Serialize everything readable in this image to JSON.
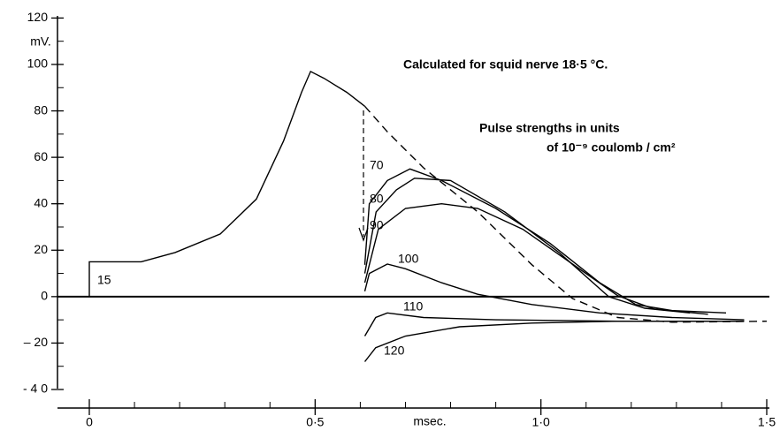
{
  "chart_data": {
    "type": "line",
    "title": "Calculated for squid nerve 18·5 °C.",
    "annotations": [
      "Pulse strengths in units",
      "of 10⁻⁹ coulomb / cm²"
    ],
    "x_label": "msec.",
    "y_label": "mV.",
    "xlim": [
      0,
      1.5
    ],
    "ylim": [
      -40,
      120
    ],
    "xticks": [
      {
        "value": 0,
        "label": "0"
      },
      {
        "value": 0.5,
        "label": "0·5"
      },
      {
        "value": 1.0,
        "label": "1·0"
      },
      {
        "value": 1.5,
        "label": "1·5"
      }
    ],
    "xminorticks": [
      0.1,
      0.2,
      0.3,
      0.4,
      0.6,
      0.7,
      0.8,
      0.9,
      1.1,
      1.2,
      1.3,
      1.4
    ],
    "yticks": [
      120,
      100,
      80,
      60,
      40,
      20,
      0,
      {
        "value": -20,
        "label": "– 20"
      },
      {
        "value": -40,
        "label": "- 4 0"
      }
    ],
    "yminorticks": [
      110,
      90,
      70,
      50,
      30,
      10,
      -10,
      -30
    ],
    "series": [
      {
        "name": "15",
        "color": "#000",
        "dash": false,
        "x": [
          0,
          0,
          0.115,
          0.19,
          0.29,
          0.37,
          0.43,
          0.47,
          0.49,
          0.52,
          0.57,
          0.61
        ],
        "values": [
          0,
          15,
          15,
          19,
          27,
          42,
          67,
          88,
          97,
          94,
          88,
          82
        ]
      },
      {
        "color": "#000",
        "dash": true,
        "x": [
          0.61,
          0.66,
          0.74,
          0.86,
          0.98,
          1.07,
          1.17,
          1.29,
          1.5
        ],
        "values": [
          82,
          71,
          55.5,
          36.5,
          13.7,
          -0.8,
          -9,
          -11,
          -10.6
        ]
      },
      {
        "name": "70",
        "color": "#000",
        "dash": false,
        "x": [
          0.61,
          0.62,
          0.66,
          0.71,
          0.78,
          0.9,
          1.02,
          1.13,
          1.21,
          1.29,
          1.41
        ],
        "values": [
          13.7,
          40,
          50,
          55,
          50,
          38,
          23,
          6,
          -3.4,
          -6,
          -7
        ]
      },
      {
        "name": "80",
        "color": "#000",
        "dash": false,
        "x": [
          0.61,
          0.635,
          0.68,
          0.72,
          0.8,
          0.92,
          1.04,
          1.15,
          1.23,
          1.33
        ],
        "values": [
          10,
          36.5,
          46,
          51,
          50,
          36.5,
          19,
          0,
          -5,
          -7
        ]
      },
      {
        "name": "90",
        "color": "#000",
        "dash": false,
        "x": [
          0.61,
          0.64,
          0.7,
          0.78,
          0.86,
          0.96,
          1.07,
          1.17,
          1.25,
          1.37
        ],
        "values": [
          6,
          29,
          38,
          40,
          38,
          29,
          14,
          0.4,
          -5.3,
          -7.6
        ]
      },
      {
        "name": "100",
        "color": "#000",
        "dash": false,
        "x": [
          0.61,
          0.62,
          0.66,
          0.7,
          0.78,
          0.86,
          0.98,
          1.13,
          1.29,
          1.45
        ],
        "values": [
          2.3,
          10,
          14,
          12,
          6,
          1,
          -3.4,
          -7,
          -9,
          -10
        ]
      },
      {
        "name": "110",
        "color": "#000",
        "dash": false,
        "x": [
          0.61,
          0.634,
          0.66,
          0.74,
          0.9,
          1.17,
          1.45
        ],
        "values": [
          -17,
          -9,
          -7,
          -9,
          -10,
          -10.6,
          -10.6
        ]
      },
      {
        "name": "120",
        "color": "#000",
        "dash": false,
        "x": [
          0.61,
          0.634,
          0.7,
          0.82,
          0.98,
          1.17,
          1.45
        ],
        "values": [
          -28,
          -22,
          -17,
          -13,
          -11.4,
          -10.6,
          -10.6
        ]
      }
    ]
  }
}
